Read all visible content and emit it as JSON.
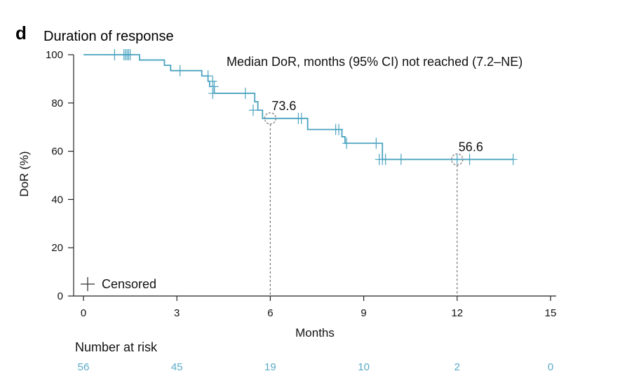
{
  "panel_letter": "d",
  "chart_data": {
    "type": "line",
    "title": "Duration of response",
    "xlabel": "Months",
    "ylabel": "DoR (%)",
    "xlim": [
      0,
      15
    ],
    "ylim": [
      0,
      100
    ],
    "x_ticks": [
      0,
      3,
      6,
      9,
      12,
      15
    ],
    "y_ticks": [
      0,
      20,
      40,
      60,
      80,
      100
    ],
    "series": [
      {
        "name": "DoR",
        "color": "#4aa3c0",
        "steps": [
          [
            0,
            100
          ],
          [
            1.8,
            97.8
          ],
          [
            2.6,
            95.6
          ],
          [
            2.8,
            93.4
          ],
          [
            3.8,
            91.2
          ],
          [
            4.0,
            89.0
          ],
          [
            4.05,
            86.8
          ],
          [
            4.2,
            84.0
          ],
          [
            5.5,
            80.5
          ],
          [
            5.6,
            77.0
          ],
          [
            5.75,
            73.6
          ],
          [
            7.2,
            69.0
          ],
          [
            8.3,
            66.0
          ],
          [
            8.4,
            63.3
          ],
          [
            9.6,
            56.6
          ],
          [
            13.8,
            56.6
          ]
        ],
        "censored": [
          [
            1.0,
            100
          ],
          [
            1.3,
            100
          ],
          [
            1.35,
            100
          ],
          [
            1.4,
            100
          ],
          [
            1.45,
            100
          ],
          [
            1.5,
            100
          ],
          [
            3.1,
            93.4
          ],
          [
            4.0,
            91.2
          ],
          [
            4.15,
            89.0
          ],
          [
            4.2,
            86.8
          ],
          [
            4.15,
            84.0
          ],
          [
            5.2,
            84.0
          ],
          [
            5.45,
            77.0
          ],
          [
            6.9,
            73.6
          ],
          [
            7.0,
            73.6
          ],
          [
            8.1,
            69.0
          ],
          [
            8.2,
            69.0
          ],
          [
            8.45,
            63.3
          ],
          [
            9.4,
            63.3
          ],
          [
            9.5,
            56.6
          ],
          [
            9.6,
            56.6
          ],
          [
            9.7,
            56.6
          ],
          [
            10.2,
            56.6
          ],
          [
            12.0,
            56.6
          ],
          [
            12.4,
            56.6
          ],
          [
            13.8,
            56.6
          ]
        ]
      }
    ],
    "median_annotation": "Median DoR, months (95% CI) not reached (7.2–NE)",
    "point_annotations": [
      {
        "x": 6,
        "y": 73.6,
        "label": "73.6"
      },
      {
        "x": 12,
        "y": 56.6,
        "label": "56.6"
      }
    ],
    "legend": {
      "label": "Censored",
      "location": "bottom-left"
    },
    "number_at_risk": {
      "title": "Number at risk",
      "times": [
        0,
        3,
        6,
        9,
        12,
        15
      ],
      "values": [
        56,
        45,
        19,
        10,
        2,
        0
      ]
    }
  }
}
